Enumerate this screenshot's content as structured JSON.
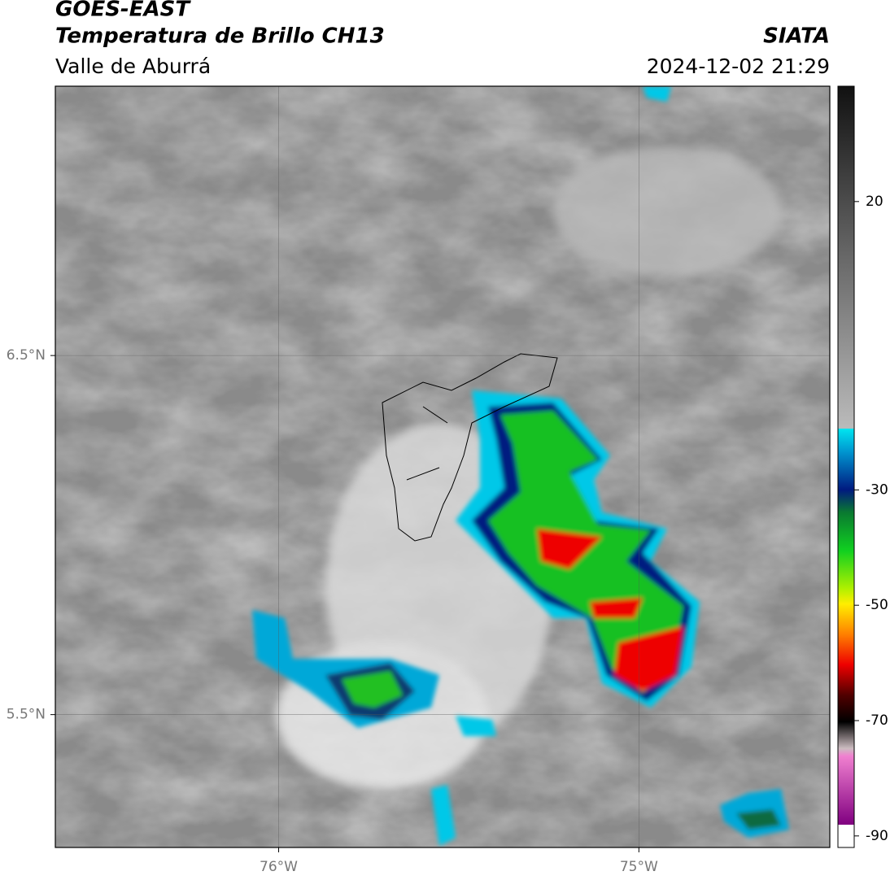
{
  "header": {
    "title": "GOES-EAST",
    "subtitle": "Temperatura de Brillo CH13",
    "region": "Valle de Aburrá",
    "source": "SIATA",
    "timestamp": "2024-12-02 21:29"
  },
  "map": {
    "xlim": [
      -76.62,
      -74.47
    ],
    "ylim": [
      5.13,
      7.25
    ],
    "xticks": [
      {
        "value": -76,
        "label": "76°W"
      },
      {
        "value": -75,
        "label": "75°W"
      }
    ],
    "yticks": [
      {
        "value": 6.5,
        "label": "6.5°N"
      },
      {
        "value": 5.5,
        "label": "5.5°N"
      }
    ]
  },
  "colorbar": {
    "lim": [
      -92,
      40
    ],
    "ticks": [
      20,
      -30,
      -50,
      -70,
      -90
    ]
  }
}
